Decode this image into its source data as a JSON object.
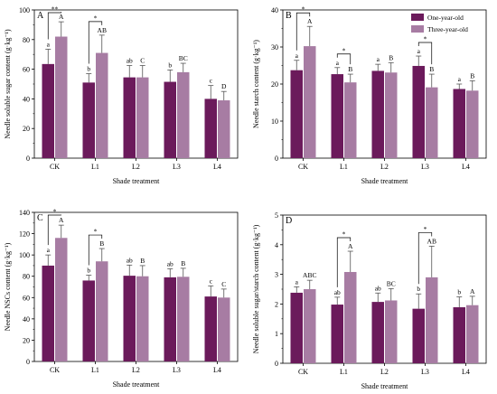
{
  "colors": {
    "one_year": "#6B1A5B",
    "three_year": "#A77CA3",
    "error": "#555555"
  },
  "legend": {
    "position": "top-right of panel B",
    "series": [
      "One-year-old",
      "Three-year-old"
    ]
  },
  "chart_data": [
    {
      "type": "bar",
      "panel": "A",
      "categories": [
        "CK",
        "L1",
        "L2",
        "L3",
        "L4"
      ],
      "xlabel": "Shade treatment",
      "ylabel": "Needle soluble sugar content (g·kg⁻¹)",
      "ylim": [
        0,
        100
      ],
      "yticks": [
        "0",
        "20",
        "40",
        "60",
        "80",
        "100"
      ],
      "grid": false,
      "series": [
        {
          "name": "One-year-old",
          "values": [
            63.5,
            51,
            54.5,
            51.5,
            40
          ],
          "errors": [
            10,
            6,
            8,
            8,
            9
          ],
          "labels": [
            "a",
            "b",
            "ab",
            "b",
            "c"
          ]
        },
        {
          "name": "Three-year-old",
          "values": [
            82,
            71,
            54.5,
            58,
            39
          ],
          "errors": [
            10,
            12,
            8,
            6,
            6
          ],
          "labels": [
            "A",
            "AB",
            "C",
            "BC",
            "D"
          ]
        }
      ],
      "significance": [
        {
          "category": "CK",
          "text": "**"
        },
        {
          "category": "L1",
          "text": "*"
        }
      ]
    },
    {
      "type": "bar",
      "panel": "B",
      "categories": [
        "CK",
        "L1",
        "L2",
        "L3",
        "L4"
      ],
      "xlabel": "Shade treatment",
      "ylabel": "Needle starch content (g·kg⁻¹)",
      "ylim": [
        0,
        45
      ],
      "yticks": [
        "0",
        "10",
        "20",
        "30",
        "40"
      ],
      "grid": false,
      "series": [
        {
          "name": "One-year-old",
          "values": [
            26.7,
            25.5,
            26.5,
            28,
            21
          ],
          "errors": [
            3,
            2,
            2,
            3,
            1.5
          ],
          "labels": [
            "a",
            "a",
            "a",
            "a",
            "a"
          ]
        },
        {
          "name": "Three-year-old",
          "values": [
            34,
            23,
            26,
            21.5,
            20.5
          ],
          "errors": [
            6,
            2.5,
            3,
            4,
            3
          ],
          "labels": [
            "A",
            "B",
            "B",
            "B",
            "B"
          ]
        }
      ],
      "significance": [
        {
          "category": "CK",
          "text": "*"
        },
        {
          "category": "L1",
          "text": "*"
        },
        {
          "category": "L3",
          "text": "*"
        }
      ]
    },
    {
      "type": "bar",
      "panel": "C",
      "categories": [
        "CK",
        "L1",
        "L2",
        "L3",
        "L4"
      ],
      "xlabel": "Shade treatment",
      "ylabel": "Needle NSCs content (g·kg⁻¹)",
      "ylim": [
        0,
        140
      ],
      "yticks": [
        "0",
        "20",
        "40",
        "60",
        "80",
        "100",
        "120",
        "140"
      ],
      "grid": false,
      "series": [
        {
          "name": "One-year-old",
          "values": [
            90,
            76,
            80.5,
            79,
            61
          ],
          "errors": [
            10,
            5,
            10,
            8,
            10
          ],
          "labels": [
            "a",
            "b",
            "ab",
            "ab",
            "c"
          ]
        },
        {
          "name": "Three-year-old",
          "values": [
            116,
            94,
            80,
            79.5,
            60
          ],
          "errors": [
            12,
            12,
            10,
            8,
            8
          ],
          "labels": [
            "A",
            "B",
            "B",
            "B",
            "C"
          ]
        }
      ],
      "significance": [
        {
          "category": "CK",
          "text": "*"
        },
        {
          "category": "L1",
          "text": "*"
        }
      ]
    },
    {
      "type": "bar",
      "panel": "D",
      "categories": [
        "CK",
        "L1",
        "L2",
        "L3",
        "L4"
      ],
      "xlabel": "Shade treatment",
      "ylabel": "Needle soluble sugar/starch content (g·kg⁻¹)",
      "ylim": [
        0,
        5
      ],
      "yticks": [
        "0",
        "1",
        "2",
        "3",
        "4",
        "5"
      ],
      "grid": false,
      "series": [
        {
          "name": "One-year-old",
          "values": [
            2.38,
            1.98,
            2.07,
            1.84,
            1.89
          ],
          "errors": [
            0.2,
            0.25,
            0.3,
            0.5,
            0.35
          ],
          "labels": [
            "a",
            "ab",
            "ab",
            "b",
            "b"
          ]
        },
        {
          "name": "Three-year-old",
          "values": [
            2.5,
            3.08,
            2.12,
            2.9,
            1.96
          ],
          "errors": [
            0.3,
            0.7,
            0.4,
            1.05,
            0.3
          ],
          "labels": [
            "ABC",
            "A",
            "BC",
            "AB",
            "A"
          ]
        }
      ],
      "significance": [
        {
          "category": "L1",
          "text": "*"
        },
        {
          "category": "L3",
          "text": "*"
        }
      ]
    }
  ]
}
